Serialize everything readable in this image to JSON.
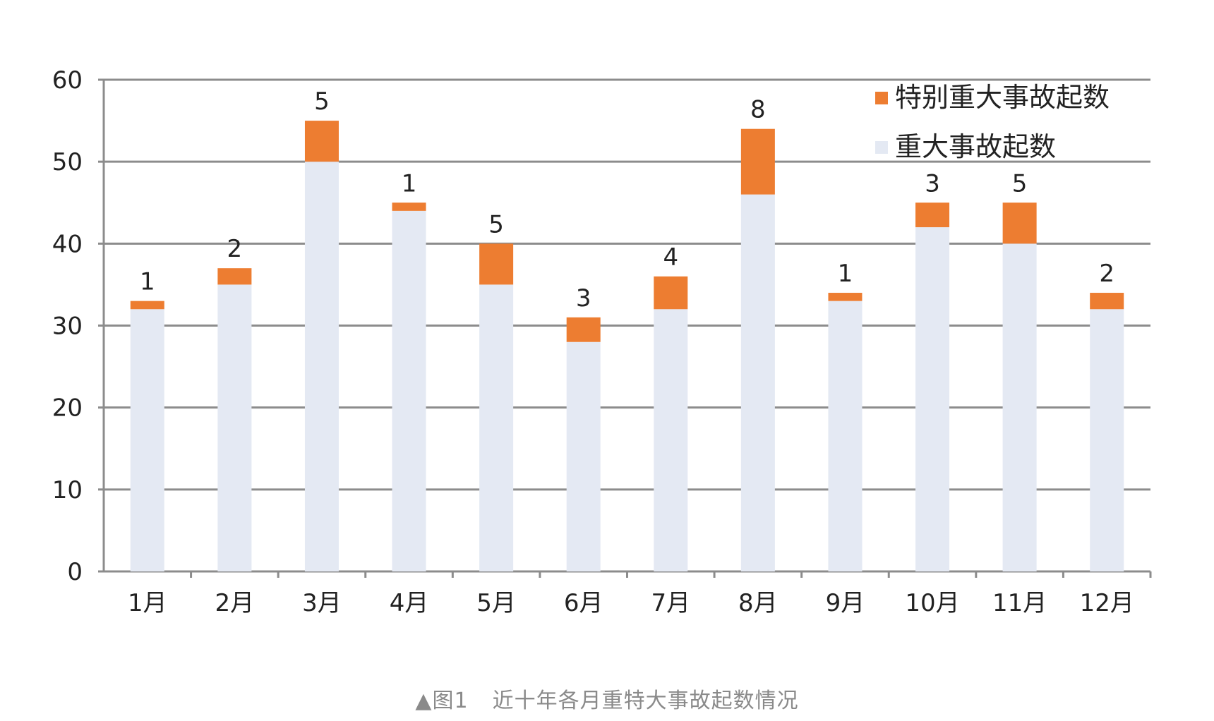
{
  "caption": {
    "figure_label": "▲图1",
    "text": "近十年各月重特大事故起数情况"
  },
  "colors": {
    "special_major": "#ED7D31",
    "major": "#E4E9F3",
    "grid": "#8C8C8C",
    "axis": "#8C8C8C"
  },
  "chart_data": {
    "type": "bar",
    "stacked": true,
    "categories": [
      "1月",
      "2月",
      "3月",
      "4月",
      "5月",
      "6月",
      "7月",
      "8月",
      "9月",
      "10月",
      "11月",
      "12月"
    ],
    "series": [
      {
        "name": "重大事故起数",
        "values": [
          32,
          35,
          50,
          44,
          35,
          28,
          32,
          46,
          33,
          42,
          40,
          32
        ]
      },
      {
        "name": "特别重大事故起数",
        "values": [
          1,
          2,
          5,
          1,
          5,
          3,
          4,
          8,
          1,
          3,
          5,
          2
        ]
      }
    ],
    "data_labels": [
      "1",
      "2",
      "5",
      "1",
      "5",
      "3",
      "4",
      "8",
      "1",
      "3",
      "5",
      "2"
    ],
    "y_ticks": [
      "0",
      "10",
      "20",
      "30",
      "40",
      "50",
      "60"
    ],
    "ylim": [
      0,
      60
    ],
    "grid": true,
    "legend": {
      "placement": "top-right",
      "entries": [
        "特别重大事故起数",
        "重大事故起数"
      ]
    }
  }
}
